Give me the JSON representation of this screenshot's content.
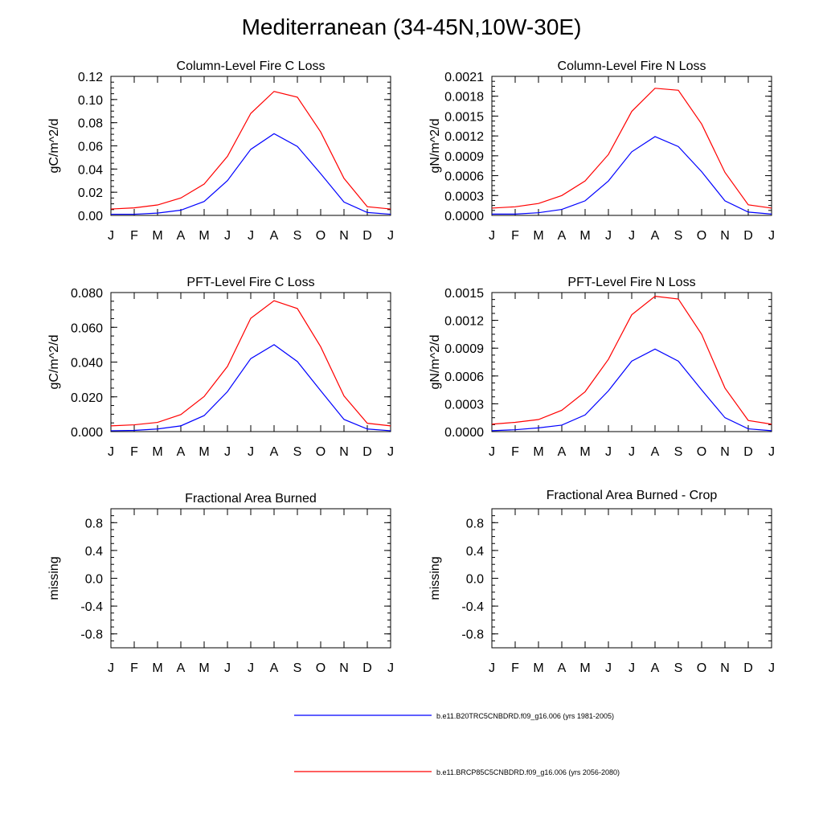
{
  "title": "Mediterranean (34-45N,10W-30E)",
  "series_colors": {
    "baseline": "#0000ff",
    "future": "#ff0000"
  },
  "legend": [
    {
      "label": "b.e11.B20TRC5CNBDRD.f09_g16.006 (yrs 1981-2005)",
      "color": "#0000ff"
    },
    {
      "label": "b.e11.BRCP85C5CNBDRD.f09_g16.006 (yrs 2056-2080)",
      "color": "#ff0000"
    }
  ],
  "chart_data": [
    {
      "type": "line",
      "title": "Column-Level Fire C Loss",
      "ylabel": "gC/m^2/d",
      "x": [
        "J",
        "F",
        "M",
        "A",
        "M",
        "J",
        "J",
        "A",
        "S",
        "O",
        "N",
        "D",
        "J"
      ],
      "ylim": [
        0,
        0.12
      ],
      "yticks": [
        "0.00",
        "0.02",
        "0.04",
        "0.06",
        "0.08",
        "0.10",
        "0.12"
      ],
      "series": [
        {
          "key": "baseline",
          "values": [
            0.001,
            0.001,
            0.002,
            0.0045,
            0.012,
            0.03,
            0.057,
            0.0705,
            0.0595,
            0.036,
            0.0115,
            0.0025,
            0.001
          ]
        },
        {
          "key": "future",
          "values": [
            0.0055,
            0.0065,
            0.009,
            0.015,
            0.027,
            0.051,
            0.088,
            0.107,
            0.102,
            0.072,
            0.032,
            0.0075,
            0.0055
          ]
        }
      ]
    },
    {
      "type": "line",
      "title": "Column-Level Fire N Loss",
      "ylabel": "gN/m^2/d",
      "x": [
        "J",
        "F",
        "M",
        "A",
        "M",
        "J",
        "J",
        "A",
        "S",
        "O",
        "N",
        "D",
        "J"
      ],
      "ylim": [
        0,
        0.0021
      ],
      "yticks": [
        "0.0000",
        "0.0003",
        "0.0006",
        "0.0009",
        "0.0012",
        "0.0015",
        "0.0018",
        "0.0021"
      ],
      "series": [
        {
          "key": "baseline",
          "values": [
            2e-05,
            2e-05,
            4e-05,
            9e-05,
            0.00022,
            0.00052,
            0.00096,
            0.00119,
            0.00104,
            0.00066,
            0.00022,
            5e-05,
            2e-05
          ]
        },
        {
          "key": "future",
          "values": [
            0.00011,
            0.00013,
            0.00018,
            0.0003,
            0.00052,
            0.00092,
            0.00157,
            0.00192,
            0.00189,
            0.00138,
            0.00065,
            0.00016,
            0.00011
          ]
        }
      ]
    },
    {
      "type": "line",
      "title": "PFT-Level Fire C Loss",
      "ylabel": "gC/m^2/d",
      "x": [
        "J",
        "F",
        "M",
        "A",
        "M",
        "J",
        "J",
        "A",
        "S",
        "O",
        "N",
        "D",
        "J"
      ],
      "ylim": [
        0,
        0.08
      ],
      "yticks": [
        "0.000",
        "0.020",
        "0.040",
        "0.060",
        "0.080"
      ],
      "series": [
        {
          "key": "baseline",
          "values": [
            0.0005,
            0.0007,
            0.0015,
            0.0033,
            0.0092,
            0.023,
            0.042,
            0.05,
            0.0403,
            0.0235,
            0.007,
            0.0015,
            0.0005
          ]
        },
        {
          "key": "future",
          "values": [
            0.0033,
            0.0039,
            0.0053,
            0.0098,
            0.0202,
            0.0375,
            0.0652,
            0.0753,
            0.0708,
            0.0488,
            0.0205,
            0.0048,
            0.0033
          ]
        }
      ]
    },
    {
      "type": "line",
      "title": "PFT-Level Fire N Loss",
      "ylabel": "gN/m^2/d",
      "x": [
        "J",
        "F",
        "M",
        "A",
        "M",
        "J",
        "J",
        "A",
        "S",
        "O",
        "N",
        "D",
        "J"
      ],
      "ylim": [
        0,
        0.0015
      ],
      "yticks": [
        "0.0000",
        "0.0003",
        "0.0006",
        "0.0009",
        "0.0012",
        "0.0015"
      ],
      "series": [
        {
          "key": "baseline",
          "values": [
            1e-05,
            2e-05,
            4e-05,
            7e-05,
            0.00018,
            0.00044,
            0.00076,
            0.00089,
            0.00076,
            0.00045,
            0.00015,
            3e-05,
            1e-05
          ]
        },
        {
          "key": "future",
          "values": [
            8e-05,
            0.0001,
            0.00013,
            0.00023,
            0.00043,
            0.00078,
            0.00126,
            0.00146,
            0.00143,
            0.00105,
            0.00047,
            0.00012,
            8e-05
          ]
        }
      ]
    },
    {
      "type": "line",
      "title": "Fractional Area Burned",
      "ylabel": "missing",
      "x": [
        "J",
        "F",
        "M",
        "A",
        "M",
        "J",
        "J",
        "A",
        "S",
        "O",
        "N",
        "D",
        "J"
      ],
      "ylim": [
        -1,
        1
      ],
      "yticks": [
        "-0.8",
        "-0.4",
        "0.0",
        "0.4",
        "0.8"
      ],
      "series": []
    },
    {
      "type": "line",
      "title": "Fractional Area Burned - Crop",
      "ylabel": "missing",
      "x": [
        "J",
        "F",
        "M",
        "A",
        "M",
        "J",
        "J",
        "A",
        "S",
        "O",
        "N",
        "D",
        "J"
      ],
      "ylim": [
        -1,
        1
      ],
      "yticks": [
        "-0.8",
        "-0.4",
        "0.0",
        "0.4",
        "0.8"
      ],
      "series": []
    }
  ]
}
